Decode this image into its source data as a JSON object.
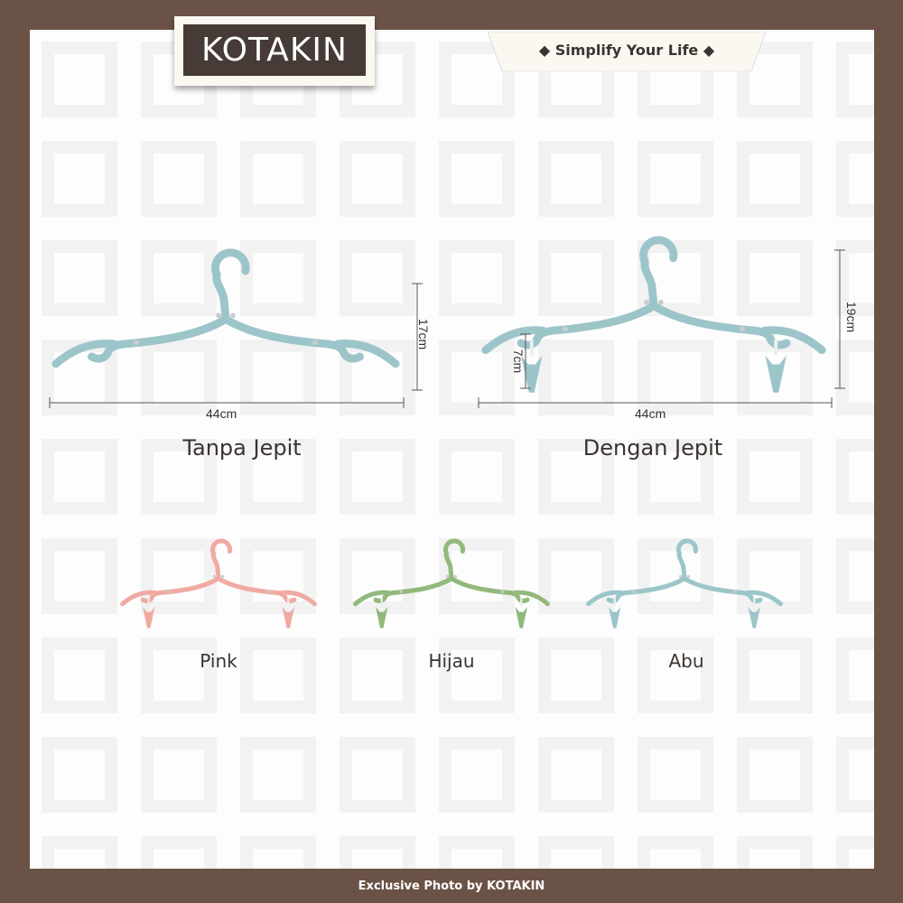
{
  "brand": {
    "logo_text": "KOTAKIN",
    "tagline": "◆ Simplify Your Life ◆"
  },
  "colors": {
    "frame": "#6b5247",
    "panel": "#fdfdfd",
    "logo_bg": "#463b36",
    "blue": "#9cc5ca",
    "pink": "#f0aaa2",
    "green": "#92b97c"
  },
  "products": [
    {
      "title": "Tanpa Jepit",
      "width_label": "44cm",
      "height_label": "17cm",
      "clips": false
    },
    {
      "title": "Dengan Jepit",
      "width_label": "44cm",
      "height_label": "19cm",
      "clip_label": "7cm",
      "clips": true
    }
  ],
  "variants": [
    {
      "label": "Pink",
      "color": "#f0aaa2"
    },
    {
      "label": "Hijau",
      "color": "#92b97c"
    },
    {
      "label": "Abu",
      "color": "#9cc5ca"
    }
  ],
  "footer": "Exclusive Photo by KOTAKIN"
}
